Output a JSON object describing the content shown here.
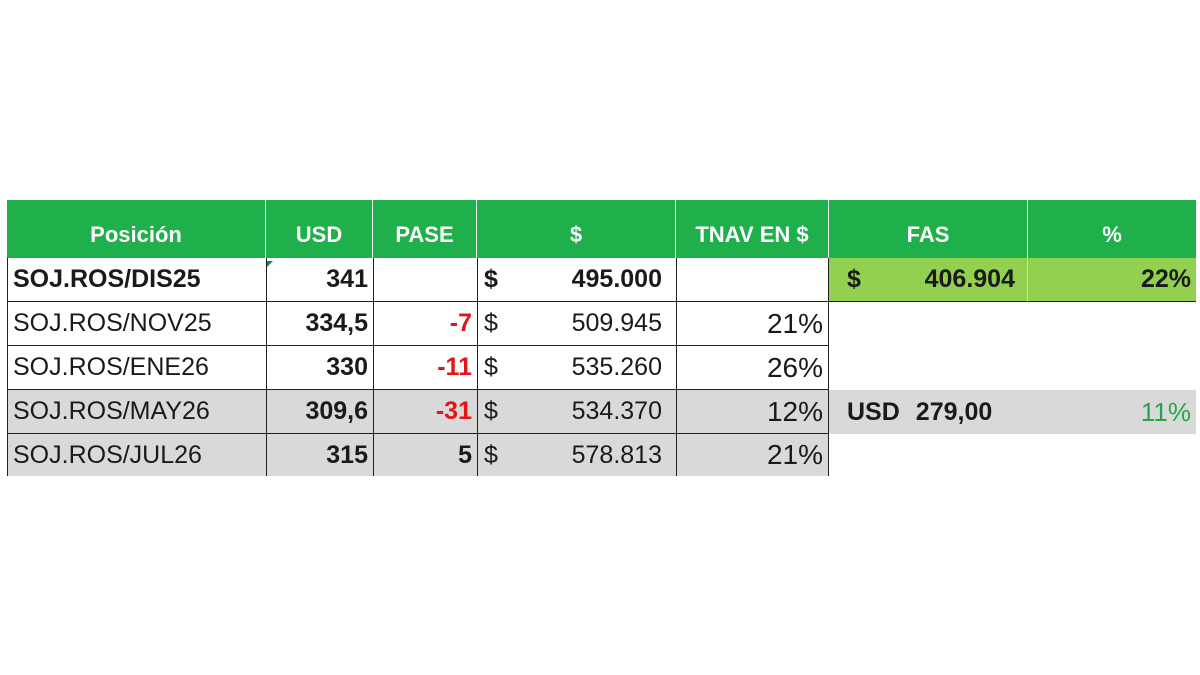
{
  "headers": {
    "posicion": "Posición",
    "usd": "USD",
    "pase": "PASE",
    "pesos": "$",
    "tnav": "TNAV EN $",
    "fas": "FAS",
    "pct": "%"
  },
  "rows": [
    {
      "posicion": "SOJ.ROS/DIS25",
      "usd": "341",
      "pase": "",
      "currency": "$",
      "pesos": "495.000",
      "tnav": ""
    },
    {
      "posicion": "SOJ.ROS/NOV25",
      "usd": "334,5",
      "pase": "-7",
      "currency": "$",
      "pesos": "509.945",
      "tnav": "21%"
    },
    {
      "posicion": "SOJ.ROS/ENE26",
      "usd": "330",
      "pase": "-11",
      "currency": "$",
      "pesos": "535.260",
      "tnav": "26%"
    },
    {
      "posicion": "SOJ.ROS/MAY26",
      "usd": "309,6",
      "pase": "-31",
      "currency": "$",
      "pesos": "534.370",
      "tnav": "12%"
    },
    {
      "posicion": "SOJ.ROS/JUL26",
      "usd": "315",
      "pase": "5",
      "currency": "$",
      "pesos": "578.813",
      "tnav": "21%"
    }
  ],
  "fas": {
    "currency": "$",
    "value": "406.904",
    "pct": "22%",
    "usd_label": "USD",
    "usd_value": "279,00",
    "usd_pct": "11%"
  },
  "colors": {
    "header_bg": "#1fb04c",
    "fas_bg": "#92d050",
    "grey_row": "#d9d9d9",
    "negative": "#e0161a",
    "positive_pct": "#22a84a"
  }
}
